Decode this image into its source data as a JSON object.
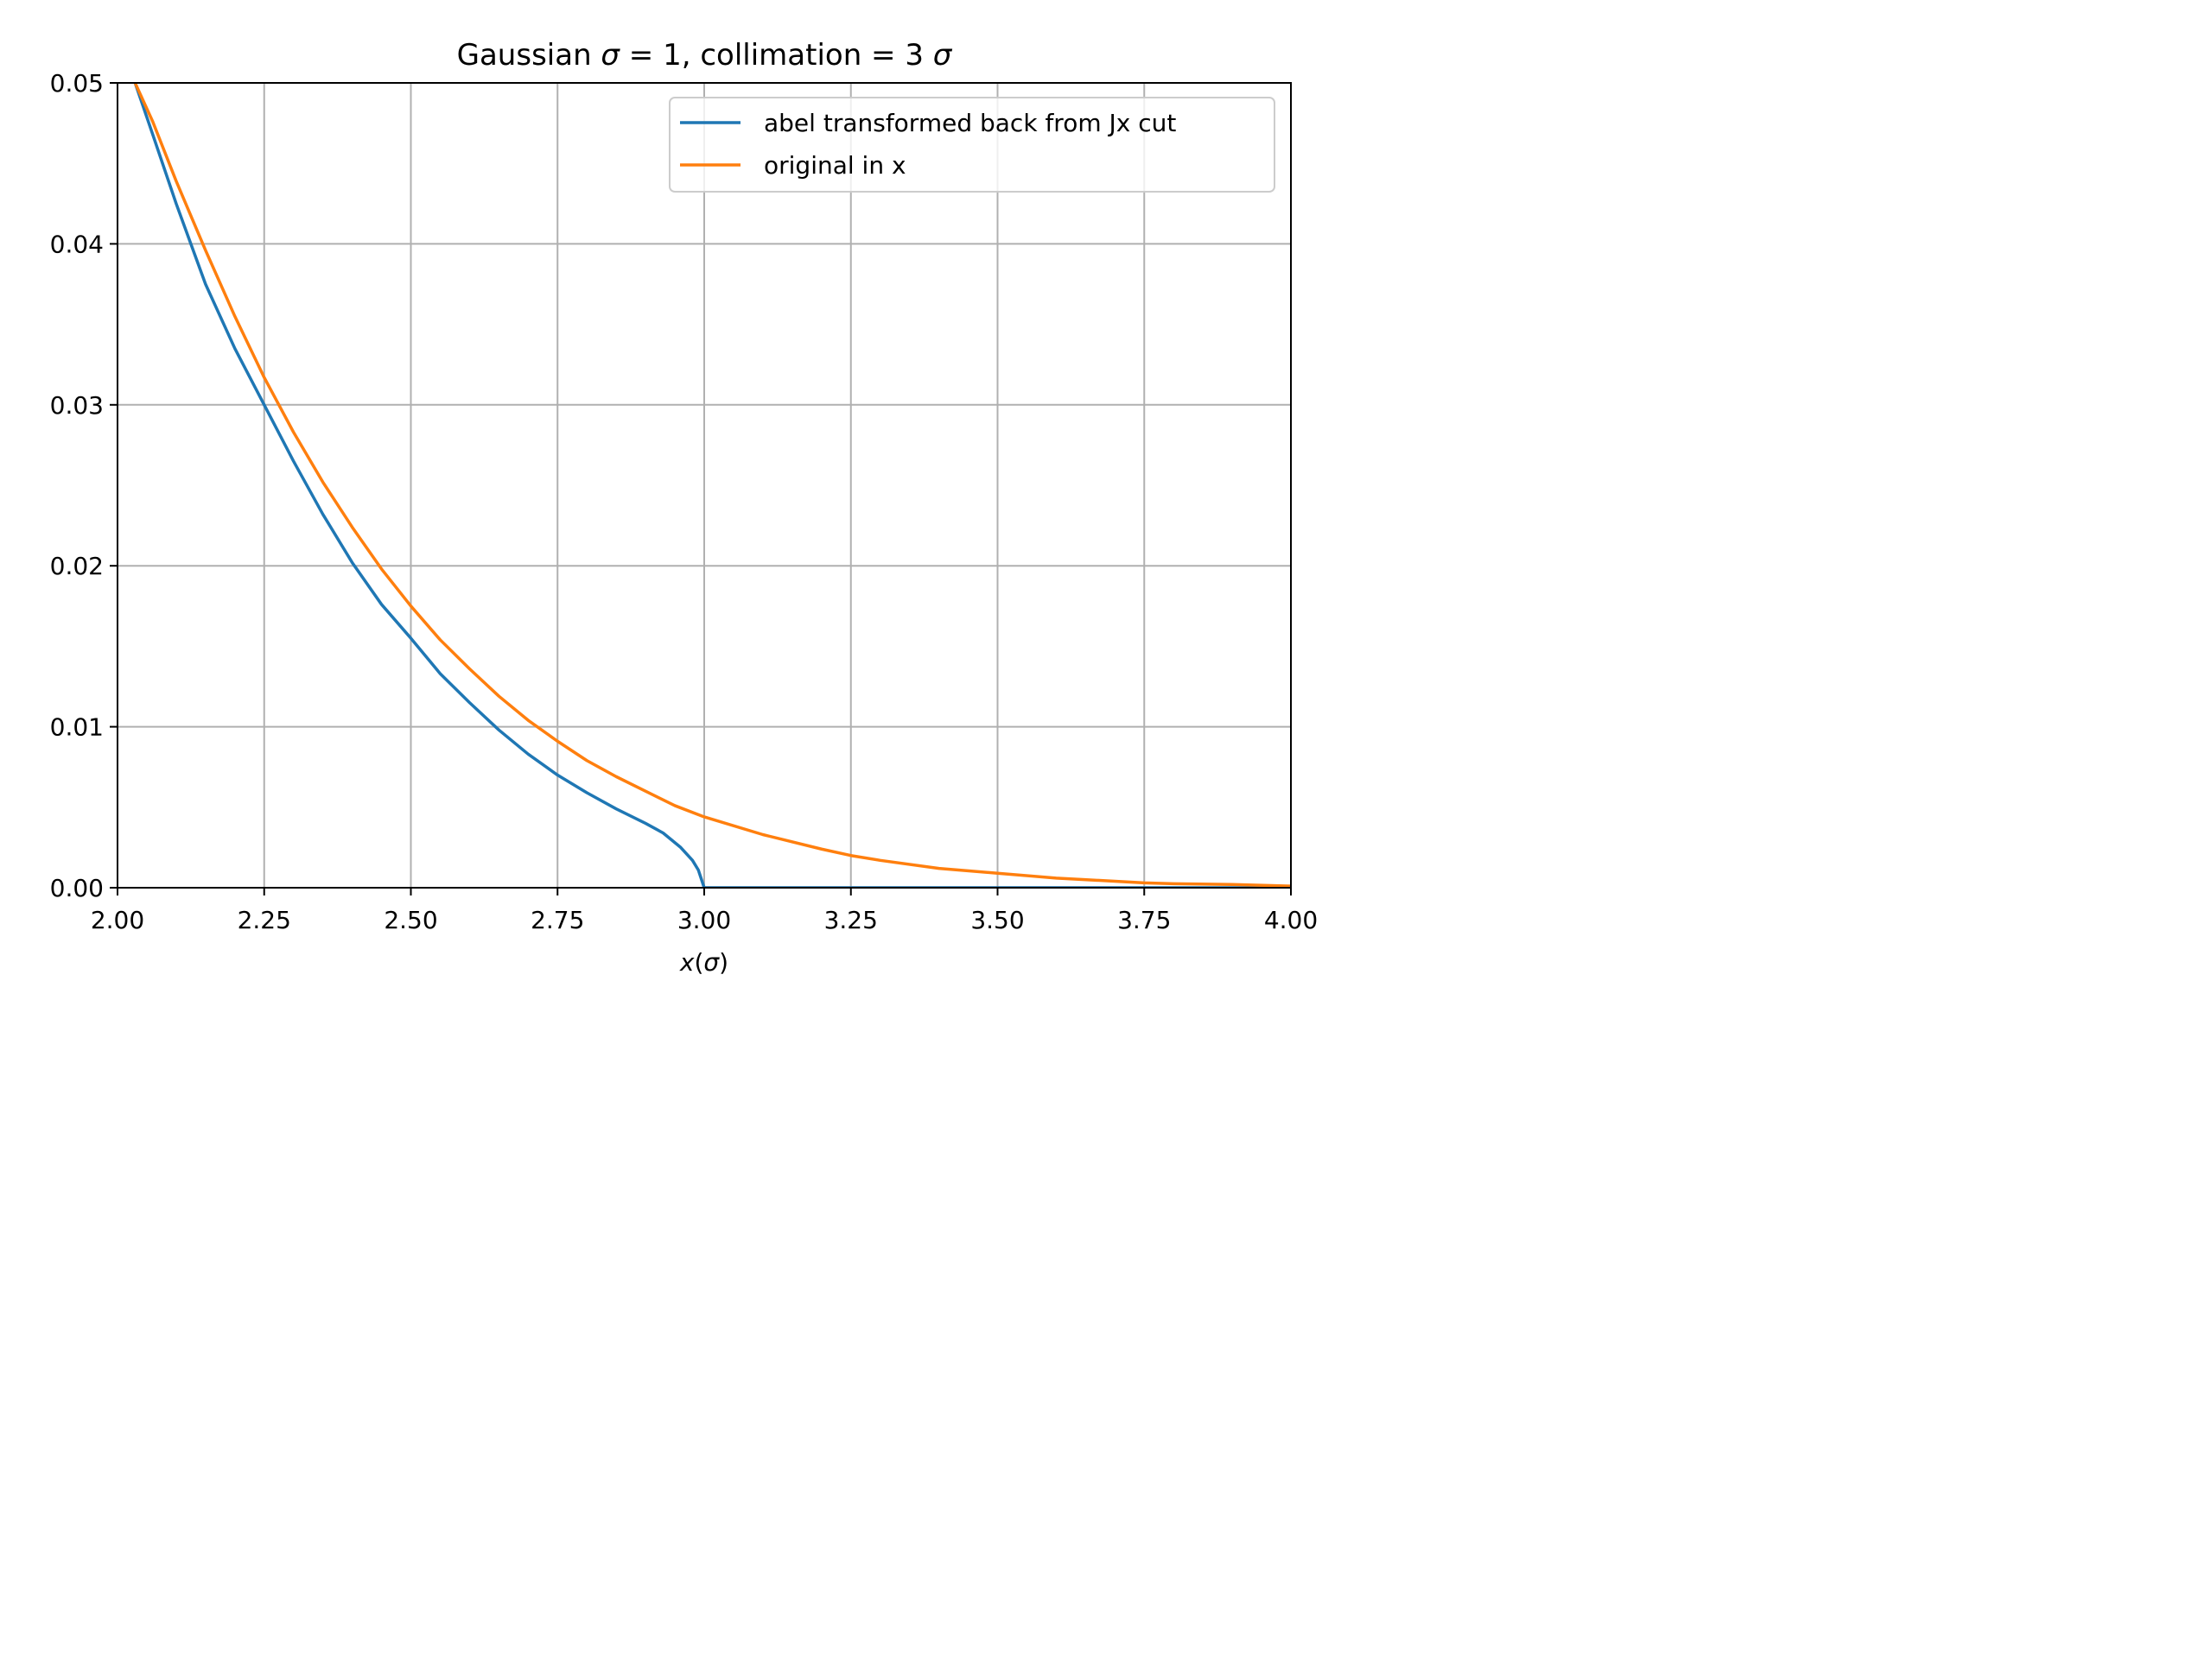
{
  "chart_data": {
    "type": "line",
    "title_parts": [
      "Gaussian ",
      "σ",
      " = 1, collimation = 3 ",
      "σ"
    ],
    "xlabel_parts": [
      "x",
      "(",
      "σ",
      ")"
    ],
    "ylabel": "",
    "xlim": [
      2.0,
      4.0
    ],
    "ylim": [
      0.0,
      0.05
    ],
    "x_ticks": [
      2.0,
      2.25,
      2.5,
      2.75,
      3.0,
      3.25,
      3.5,
      3.75,
      4.0
    ],
    "x_tick_labels": [
      "2.00",
      "2.25",
      "2.50",
      "2.75",
      "3.00",
      "3.25",
      "3.50",
      "3.75",
      "4.00"
    ],
    "y_ticks": [
      0.0,
      0.01,
      0.02,
      0.03,
      0.04,
      0.05
    ],
    "y_tick_labels": [
      "0.00",
      "0.01",
      "0.02",
      "0.03",
      "0.04",
      "0.05"
    ],
    "grid": true,
    "legend_position": "top-right",
    "series": [
      {
        "name": "abel transformed back from Jx cut",
        "color": "#1f77b4",
        "x": [
          2.0,
          2.03,
          2.06,
          2.1,
          2.15,
          2.2,
          2.25,
          2.3,
          2.35,
          2.4,
          2.45,
          2.5,
          2.55,
          2.6,
          2.65,
          2.7,
          2.75,
          2.8,
          2.85,
          2.9,
          2.93,
          2.96,
          2.98,
          2.99,
          3.0,
          3.01,
          3.5,
          4.0
        ],
        "y": [
          0.055,
          0.05,
          0.0468,
          0.0425,
          0.0375,
          0.0335,
          0.03,
          0.0265,
          0.0232,
          0.0202,
          0.0176,
          0.0155,
          0.0133,
          0.0115,
          0.0098,
          0.0083,
          0.007,
          0.0059,
          0.0049,
          0.004,
          0.0034,
          0.0025,
          0.0017,
          0.0011,
          0.0,
          0.0,
          0.0,
          0.0
        ]
      },
      {
        "name": "original in x",
        "color": "#ff7f0e",
        "x": [
          2.0,
          2.03,
          2.06,
          2.1,
          2.15,
          2.2,
          2.25,
          2.3,
          2.35,
          2.4,
          2.45,
          2.5,
          2.55,
          2.6,
          2.65,
          2.7,
          2.75,
          2.8,
          2.85,
          2.9,
          2.95,
          3.0,
          3.1,
          3.2,
          3.25,
          3.3,
          3.4,
          3.5,
          3.6,
          3.7,
          3.75,
          3.8,
          3.9,
          4.0
        ],
        "y": [
          0.054,
          0.05,
          0.0476,
          0.0439,
          0.0396,
          0.0355,
          0.0317,
          0.0283,
          0.0252,
          0.0224,
          0.0198,
          0.0175,
          0.0154,
          0.0136,
          0.0119,
          0.0104,
          0.0091,
          0.0079,
          0.0069,
          0.006,
          0.0051,
          0.0044,
          0.0033,
          0.0024,
          0.002,
          0.0017,
          0.0012,
          0.0009,
          0.0006,
          0.0004,
          0.0003,
          0.00025,
          0.0002,
          0.0001
        ]
      }
    ]
  }
}
